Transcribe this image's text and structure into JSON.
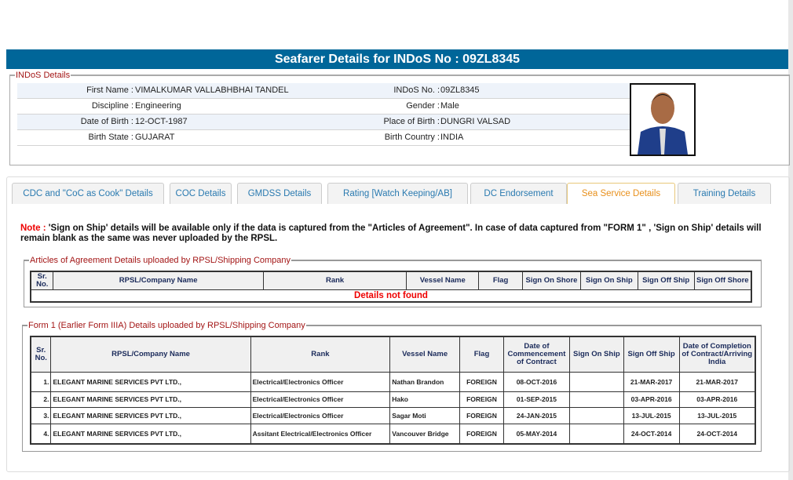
{
  "title": "Seafarer Details for INDoS No : 09ZL8345",
  "indos": {
    "legend": "INDoS Details",
    "rows": [
      {
        "l1": "First Name :",
        "v1": "VIMALKUMAR VALLABHBHAI TANDEL",
        "l2": "INDoS No. :",
        "v2": "09ZL8345"
      },
      {
        "l1": "Discipline :",
        "v1": "Engineering",
        "l2": "Gender :",
        "v2": "Male"
      },
      {
        "l1": "Date of Birth :",
        "v1": "12-OCT-1987",
        "l2": "Place of Birth :",
        "v2": "DUNGRI VALSAD"
      },
      {
        "l1": "Birth State :",
        "v1": "GUJARAT",
        "l2": "Birth Country :",
        "v2": "INDIA"
      }
    ]
  },
  "tabs": [
    {
      "label": "CDC and \"CoC as Cook\" Details"
    },
    {
      "label": "COC Details"
    },
    {
      "label": "GMDSS Details"
    },
    {
      "label": "Rating [Watch Keeping/AB]"
    },
    {
      "label": "DC Endorsement"
    },
    {
      "label": "Sea Service Details",
      "active": true
    },
    {
      "label": "Training Details"
    }
  ],
  "note": {
    "label": "Note :",
    "text": " 'Sign on Ship' details will be available only if the data is captured from the \"Articles of Agreement\". In case of data captured from \"FORM 1\" , 'Sign on Ship' details will remain blank as the same was never uploaded by the RPSL."
  },
  "articles": {
    "legend": "Articles of Agreement Details uploaded by RPSL/Shipping Company",
    "headers": [
      "Sr. No.",
      "RPSL/Company Name",
      "Rank",
      "Vessel Name",
      "Flag",
      "Sign On Shore",
      "Sign On Ship",
      "Sign Off Ship",
      "Sign Off Shore"
    ],
    "empty": "Details not found"
  },
  "form1": {
    "legend": "Form 1 (Earlier Form IIIA) Details uploaded by RPSL/Shipping Company",
    "headers": [
      "Sr. No.",
      "RPSL/Company Name",
      "Rank",
      "Vessel Name",
      "Flag",
      "Date of Commencement of Contract",
      "Sign On Ship",
      "Sign Off Ship",
      "Date of Completion of Contract/Arriving India"
    ],
    "rows": [
      [
        "1.",
        "ELEGANT MARINE SERVICES PVT LTD.,",
        "Electrical/Electronics Officer",
        "Nathan Brandon",
        "FOREIGN",
        "08-OCT-2016",
        "",
        "21-MAR-2017",
        "21-MAR-2017"
      ],
      [
        "2.",
        "ELEGANT MARINE SERVICES PVT LTD.,",
        "Electrical/Electronics Officer",
        "Hako",
        "FOREIGN",
        "01-SEP-2015",
        "",
        "03-APR-2016",
        "03-APR-2016"
      ],
      [
        "3.",
        "ELEGANT MARINE SERVICES PVT LTD.,",
        "Electrical/Electronics Officer",
        "Sagar Moti",
        "FOREIGN",
        "24-JAN-2015",
        "",
        "13-JUL-2015",
        "13-JUL-2015"
      ],
      [
        "4.",
        "ELEGANT MARINE SERVICES PVT LTD.,",
        "Assitant Electrical/Electronics Officer",
        "Vancouver Bridge",
        "FOREIGN",
        "05-MAY-2014",
        "",
        "24-OCT-2014",
        "24-OCT-2014"
      ]
    ]
  },
  "colors": {
    "header": "#006699",
    "legend": "#a31515",
    "active_tab": "#e8901c",
    "tab_text": "#2a7ab0",
    "error": "#ee0000"
  }
}
